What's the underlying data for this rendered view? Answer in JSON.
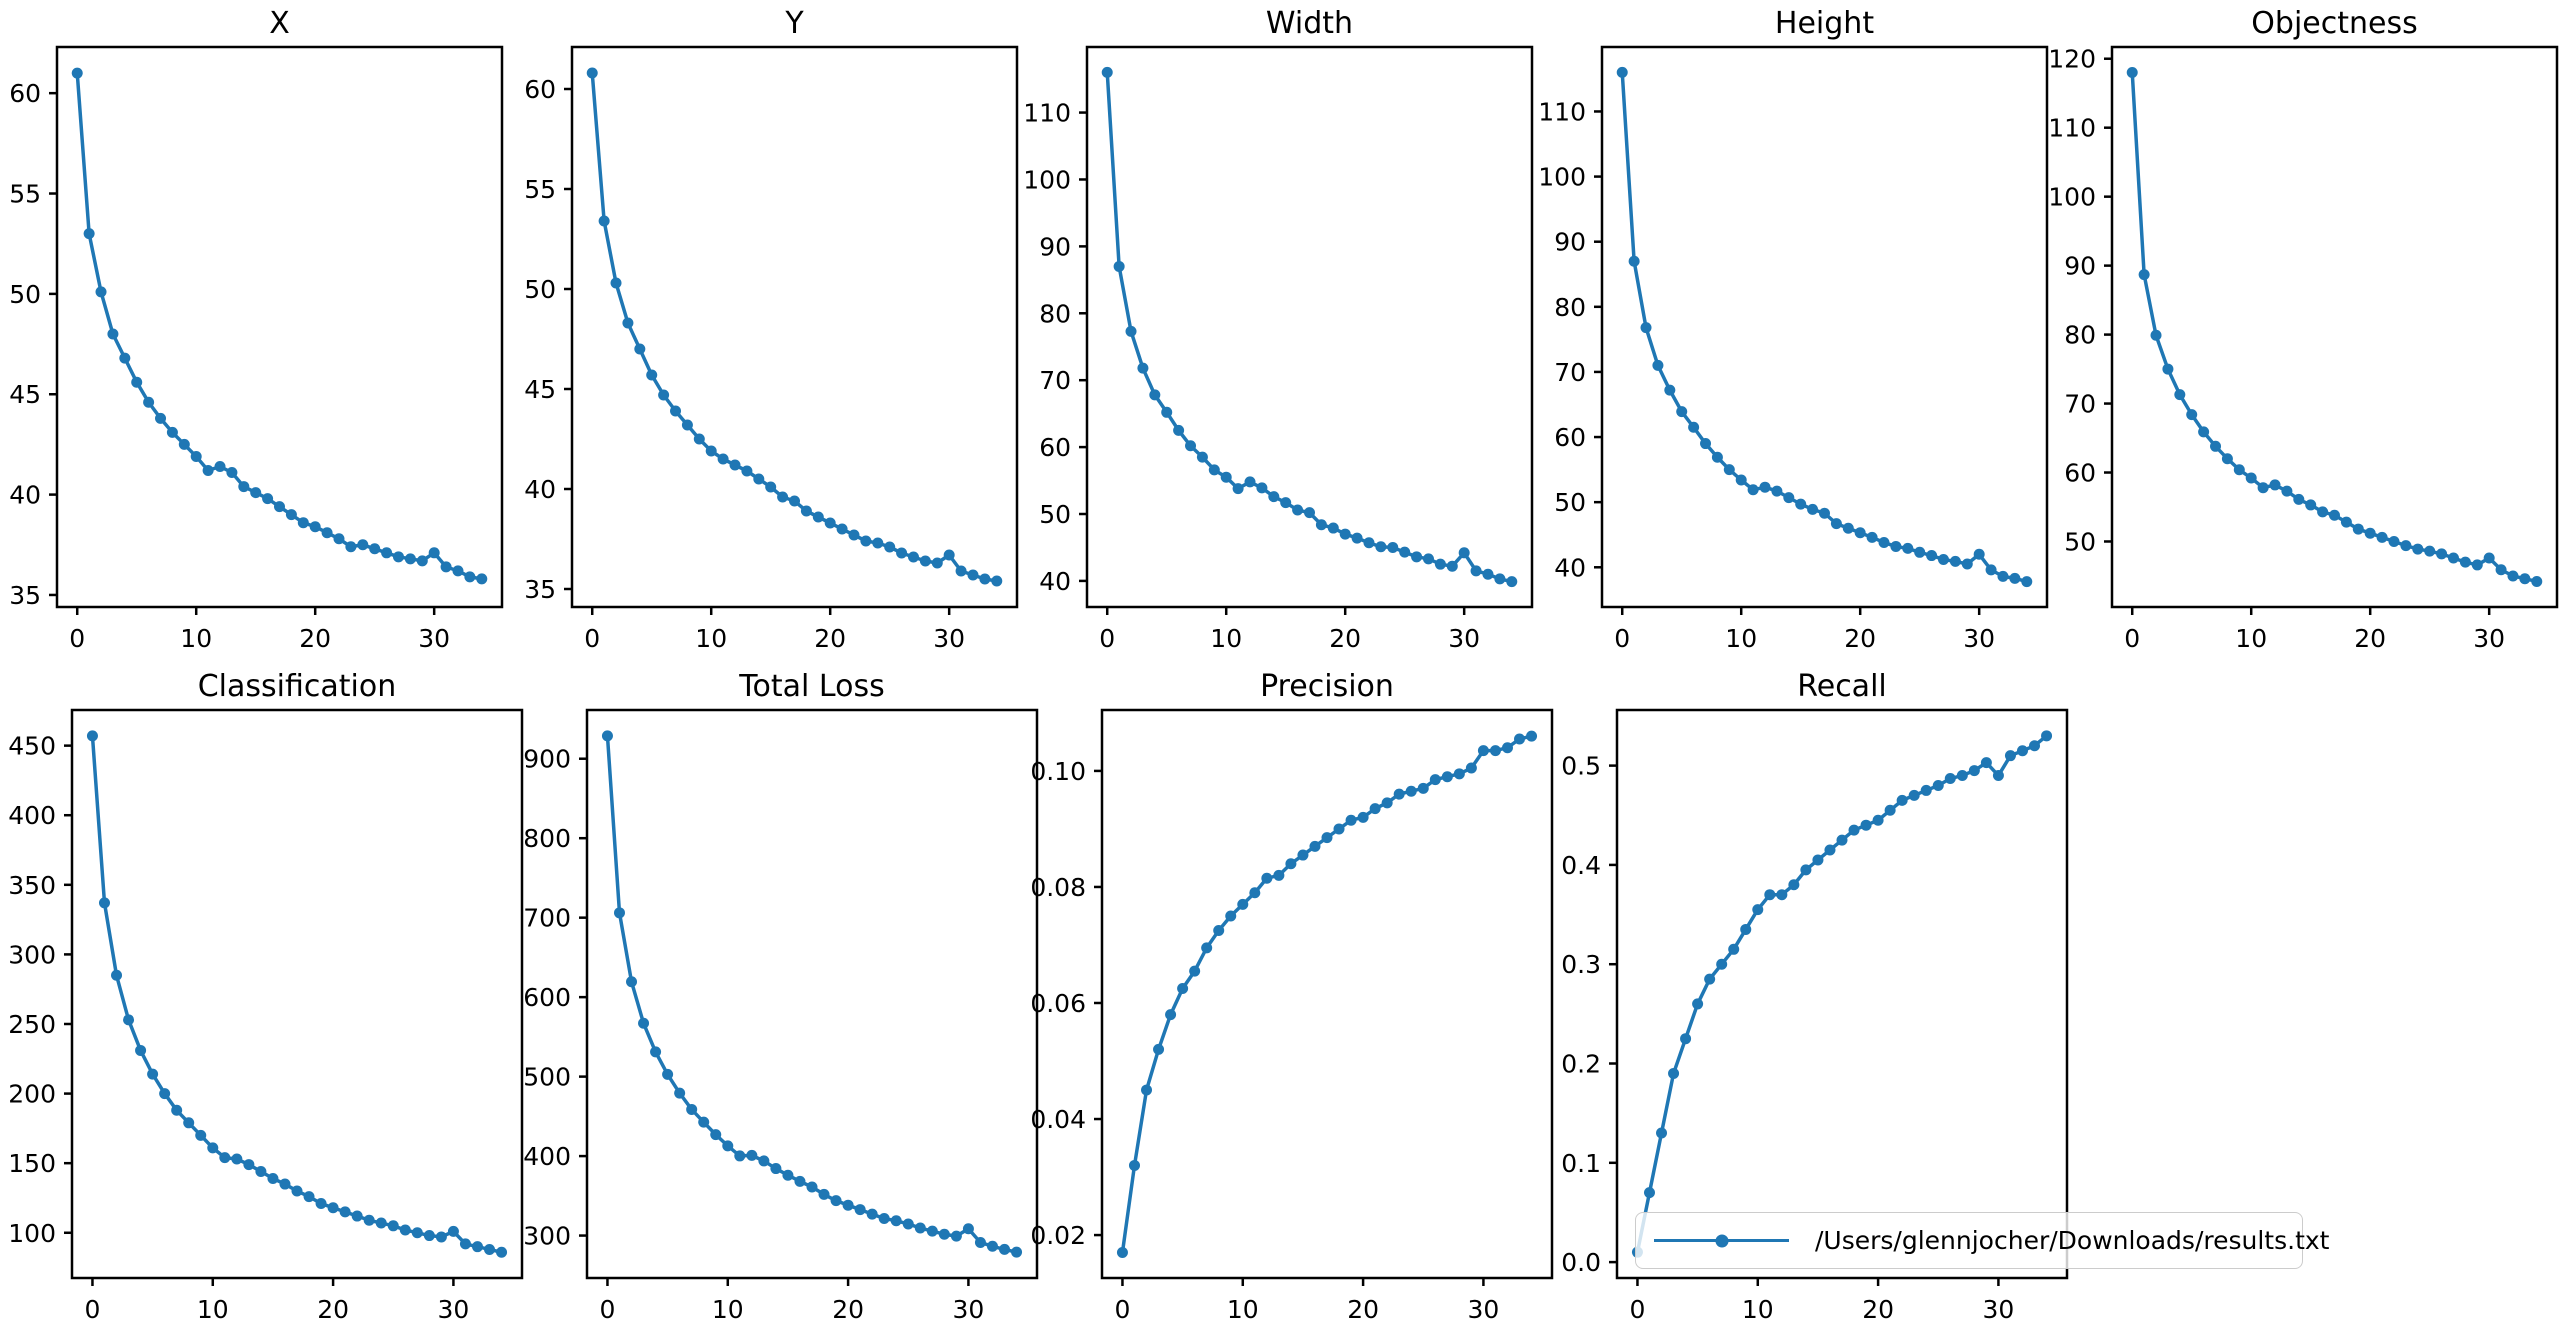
{
  "colors": {
    "series": "#1f77b4",
    "axes": "#000000",
    "text": "#000000",
    "legend_border": "#cccccc"
  },
  "legend": {
    "label": "/Users/glennjocher/Downloads/results.txt"
  },
  "chart_data": [
    {
      "type": "line",
      "title": "X",
      "xlabel": "",
      "ylabel": "",
      "grid": false,
      "xlim": [
        -1.7,
        35.7
      ],
      "xticks": [
        0,
        10,
        20,
        30
      ],
      "ylim": [
        34.4,
        62.3
      ],
      "yticks": [
        35,
        40,
        45,
        50,
        55,
        60
      ],
      "ytick_labels": [
        "35",
        "40",
        "45",
        "50",
        "55",
        "60"
      ],
      "x": [
        0,
        1,
        2,
        3,
        4,
        5,
        6,
        7,
        8,
        9,
        10,
        11,
        12,
        13,
        14,
        15,
        16,
        17,
        18,
        19,
        20,
        21,
        22,
        23,
        24,
        25,
        26,
        27,
        28,
        29,
        30,
        31,
        32,
        33,
        34
      ],
      "values": [
        61.0,
        53.0,
        50.1,
        48.0,
        46.8,
        45.6,
        44.6,
        43.8,
        43.1,
        42.5,
        41.9,
        41.2,
        41.4,
        41.1,
        40.4,
        40.1,
        39.8,
        39.4,
        39.0,
        38.6,
        38.4,
        38.1,
        37.8,
        37.4,
        37.5,
        37.3,
        37.1,
        36.9,
        36.8,
        36.7,
        37.1,
        36.4,
        36.2,
        35.9,
        35.8
      ]
    },
    {
      "type": "line",
      "title": "Y",
      "xlabel": "",
      "ylabel": "",
      "grid": false,
      "xlim": [
        -1.7,
        35.7
      ],
      "xticks": [
        0,
        10,
        20,
        30
      ],
      "ylim": [
        34.1,
        62.1
      ],
      "yticks": [
        35,
        40,
        45,
        50,
        55,
        60
      ],
      "ytick_labels": [
        "35",
        "40",
        "45",
        "50",
        "55",
        "60"
      ],
      "x": [
        0,
        1,
        2,
        3,
        4,
        5,
        6,
        7,
        8,
        9,
        10,
        11,
        12,
        13,
        14,
        15,
        16,
        17,
        18,
        19,
        20,
        21,
        22,
        23,
        24,
        25,
        26,
        27,
        28,
        29,
        30,
        31,
        32,
        33,
        34
      ],
      "values": [
        60.8,
        53.4,
        50.3,
        48.3,
        47.0,
        45.7,
        44.7,
        43.9,
        43.2,
        42.5,
        41.9,
        41.5,
        41.2,
        40.9,
        40.5,
        40.1,
        39.6,
        39.4,
        38.9,
        38.6,
        38.3,
        38.0,
        37.7,
        37.4,
        37.3,
        37.1,
        36.8,
        36.6,
        36.4,
        36.3,
        36.7,
        35.9,
        35.7,
        35.5,
        35.4
      ]
    },
    {
      "type": "line",
      "title": "Width",
      "xlabel": "",
      "ylabel": "",
      "grid": false,
      "xlim": [
        -1.7,
        35.7
      ],
      "xticks": [
        0,
        10,
        20,
        30
      ],
      "ylim": [
        36.1,
        119.8
      ],
      "yticks": [
        40,
        50,
        60,
        70,
        80,
        90,
        100,
        110
      ],
      "ytick_labels": [
        "40",
        "50",
        "60",
        "70",
        "80",
        "90",
        "100",
        "110"
      ],
      "x": [
        0,
        1,
        2,
        3,
        4,
        5,
        6,
        7,
        8,
        9,
        10,
        11,
        12,
        13,
        14,
        15,
        16,
        17,
        18,
        19,
        20,
        21,
        22,
        23,
        24,
        25,
        26,
        27,
        28,
        29,
        30,
        31,
        32,
        33,
        34
      ],
      "values": [
        116.0,
        87.0,
        77.3,
        71.8,
        67.8,
        65.2,
        62.5,
        60.2,
        58.5,
        56.6,
        55.5,
        53.8,
        54.8,
        53.9,
        52.6,
        51.7,
        50.6,
        50.2,
        48.4,
        47.9,
        47.0,
        46.4,
        45.7,
        45.1,
        45.0,
        44.3,
        43.6,
        43.3,
        42.5,
        42.2,
        44.2,
        41.5,
        41.0,
        40.3,
        39.9
      ]
    },
    {
      "type": "line",
      "title": "Height",
      "xlabel": "",
      "ylabel": "",
      "grid": false,
      "xlim": [
        -1.7,
        35.7
      ],
      "xticks": [
        0,
        10,
        20,
        30
      ],
      "ylim": [
        33.9,
        119.9
      ],
      "yticks": [
        40,
        50,
        60,
        70,
        80,
        90,
        100,
        110
      ],
      "ytick_labels": [
        "40",
        "50",
        "60",
        "70",
        "80",
        "90",
        "100",
        "110"
      ],
      "x": [
        0,
        1,
        2,
        3,
        4,
        5,
        6,
        7,
        8,
        9,
        10,
        11,
        12,
        13,
        14,
        15,
        16,
        17,
        18,
        19,
        20,
        21,
        22,
        23,
        24,
        25,
        26,
        27,
        28,
        29,
        30,
        31,
        32,
        33,
        34
      ],
      "values": [
        116.0,
        87.0,
        76.8,
        71.0,
        67.2,
        63.9,
        61.5,
        59.0,
        56.9,
        55.0,
        53.4,
        51.9,
        52.3,
        51.7,
        50.7,
        49.7,
        48.9,
        48.3,
        46.7,
        46.0,
        45.3,
        44.6,
        43.8,
        43.2,
        42.9,
        42.3,
        41.8,
        41.2,
        40.9,
        40.5,
        42.0,
        39.6,
        38.6,
        38.3,
        37.8
      ]
    },
    {
      "type": "line",
      "title": "Objectness",
      "xlabel": "",
      "ylabel": "",
      "grid": false,
      "xlim": [
        -1.7,
        35.7
      ],
      "xticks": [
        0,
        10,
        20,
        30
      ],
      "ylim": [
        40.5,
        121.7
      ],
      "yticks": [
        50,
        60,
        70,
        80,
        90,
        100,
        110,
        120
      ],
      "ytick_labels": [
        "50",
        "60",
        "70",
        "80",
        "90",
        "100",
        "110",
        "120"
      ],
      "x": [
        0,
        1,
        2,
        3,
        4,
        5,
        6,
        7,
        8,
        9,
        10,
        11,
        12,
        13,
        14,
        15,
        16,
        17,
        18,
        19,
        20,
        21,
        22,
        23,
        24,
        25,
        26,
        27,
        28,
        29,
        30,
        31,
        32,
        33,
        34
      ],
      "values": [
        118.0,
        88.7,
        79.9,
        75.0,
        71.3,
        68.4,
        65.9,
        63.8,
        62.0,
        60.4,
        59.2,
        57.8,
        58.2,
        57.3,
        56.1,
        55.3,
        54.3,
        53.8,
        52.8,
        51.8,
        51.2,
        50.6,
        50.0,
        49.4,
        48.9,
        48.6,
        48.2,
        47.6,
        47.0,
        46.6,
        47.6,
        45.9,
        45.0,
        44.6,
        44.2
      ]
    },
    {
      "type": "line",
      "title": "Classification",
      "xlabel": "",
      "ylabel": "",
      "grid": false,
      "xlim": [
        -1.7,
        35.7
      ],
      "xticks": [
        0,
        10,
        20,
        30
      ],
      "ylim": [
        67.5,
        475.6
      ],
      "yticks": [
        100,
        150,
        200,
        250,
        300,
        350,
        400,
        450
      ],
      "ytick_labels": [
        "100",
        "150",
        "200",
        "250",
        "300",
        "350",
        "400",
        "450"
      ],
      "x": [
        0,
        1,
        2,
        3,
        4,
        5,
        6,
        7,
        8,
        9,
        10,
        11,
        12,
        13,
        14,
        15,
        16,
        17,
        18,
        19,
        20,
        21,
        22,
        23,
        24,
        25,
        26,
        27,
        28,
        29,
        30,
        31,
        32,
        33,
        34
      ],
      "values": [
        457,
        337,
        285,
        253,
        231,
        214,
        200,
        188,
        179,
        170,
        161,
        154,
        153,
        149,
        144,
        139,
        135,
        130,
        126,
        121,
        118,
        115,
        112,
        109,
        107,
        105,
        102,
        100,
        98,
        97,
        101,
        92,
        90,
        88,
        86
      ]
    },
    {
      "type": "line",
      "title": "Total Loss",
      "xlabel": "",
      "ylabel": "",
      "grid": false,
      "xlim": [
        -1.7,
        35.7
      ],
      "xticks": [
        0,
        10,
        20,
        30
      ],
      "ylim": [
        246.6,
        961.3
      ],
      "yticks": [
        300,
        400,
        500,
        600,
        700,
        800,
        900
      ],
      "ytick_labels": [
        "300",
        "400",
        "500",
        "600",
        "700",
        "800",
        "900"
      ],
      "x": [
        0,
        1,
        2,
        3,
        4,
        5,
        6,
        7,
        8,
        9,
        10,
        11,
        12,
        13,
        14,
        15,
        16,
        17,
        18,
        19,
        20,
        21,
        22,
        23,
        24,
        25,
        26,
        27,
        28,
        29,
        30,
        31,
        32,
        33,
        34
      ],
      "values": [
        928.8,
        706.1,
        619.4,
        567.1,
        531.1,
        502.8,
        479.2,
        458.7,
        442.7,
        427.0,
        412.9,
        400.2,
        400.9,
        393.9,
        384.3,
        375.9,
        368.2,
        361.1,
        351.8,
        343.9,
        338.2,
        332.7,
        327.0,
        321.5,
        318.6,
        314.6,
        309.5,
        305.6,
        301.6,
        299.3,
        308.6,
        291.3,
        286.5,
        282.6,
        279.1
      ]
    },
    {
      "type": "line",
      "title": "Precision",
      "xlabel": "",
      "ylabel": "",
      "grid": false,
      "xlim": [
        -1.7,
        35.7
      ],
      "xticks": [
        0,
        10,
        20,
        30
      ],
      "ylim": [
        0.0126,
        0.1105
      ],
      "yticks": [
        0.02,
        0.04,
        0.06,
        0.08,
        0.1
      ],
      "ytick_labels": [
        "0.02",
        "0.04",
        "0.06",
        "0.08",
        "0.10"
      ],
      "x": [
        0,
        1,
        2,
        3,
        4,
        5,
        6,
        7,
        8,
        9,
        10,
        11,
        12,
        13,
        14,
        15,
        16,
        17,
        18,
        19,
        20,
        21,
        22,
        23,
        24,
        25,
        26,
        27,
        28,
        29,
        30,
        31,
        32,
        33,
        34
      ],
      "values": [
        0.017,
        0.032,
        0.045,
        0.052,
        0.058,
        0.0625,
        0.0655,
        0.0695,
        0.0725,
        0.075,
        0.077,
        0.079,
        0.0815,
        0.082,
        0.084,
        0.0855,
        0.087,
        0.0885,
        0.09,
        0.0915,
        0.092,
        0.0935,
        0.0945,
        0.096,
        0.0965,
        0.097,
        0.0985,
        0.099,
        0.0995,
        0.1005,
        0.1035,
        0.1035,
        0.104,
        0.1055,
        0.106
      ]
    },
    {
      "type": "line",
      "title": "Recall",
      "xlabel": "",
      "ylabel": "",
      "grid": false,
      "legend_label": "/Users/glennjocher/Downloads/results.txt",
      "xlim": [
        -1.7,
        35.7
      ],
      "xticks": [
        0,
        10,
        20,
        30
      ],
      "ylim": [
        -0.016,
        0.556
      ],
      "yticks": [
        0.0,
        0.1,
        0.2,
        0.3,
        0.4,
        0.5
      ],
      "ytick_labels": [
        "0.0",
        "0.1",
        "0.2",
        "0.3",
        "0.4",
        "0.5"
      ],
      "x": [
        0,
        1,
        2,
        3,
        4,
        5,
        6,
        7,
        8,
        9,
        10,
        11,
        12,
        13,
        14,
        15,
        16,
        17,
        18,
        19,
        20,
        21,
        22,
        23,
        24,
        25,
        26,
        27,
        28,
        29,
        30,
        31,
        32,
        33,
        34
      ],
      "values": [
        0.01,
        0.07,
        0.13,
        0.19,
        0.225,
        0.26,
        0.285,
        0.3,
        0.315,
        0.335,
        0.355,
        0.37,
        0.37,
        0.38,
        0.395,
        0.405,
        0.415,
        0.425,
        0.435,
        0.44,
        0.445,
        0.455,
        0.465,
        0.47,
        0.475,
        0.48,
        0.487,
        0.49,
        0.495,
        0.503,
        0.49,
        0.51,
        0.515,
        0.52,
        0.53
      ]
    }
  ]
}
